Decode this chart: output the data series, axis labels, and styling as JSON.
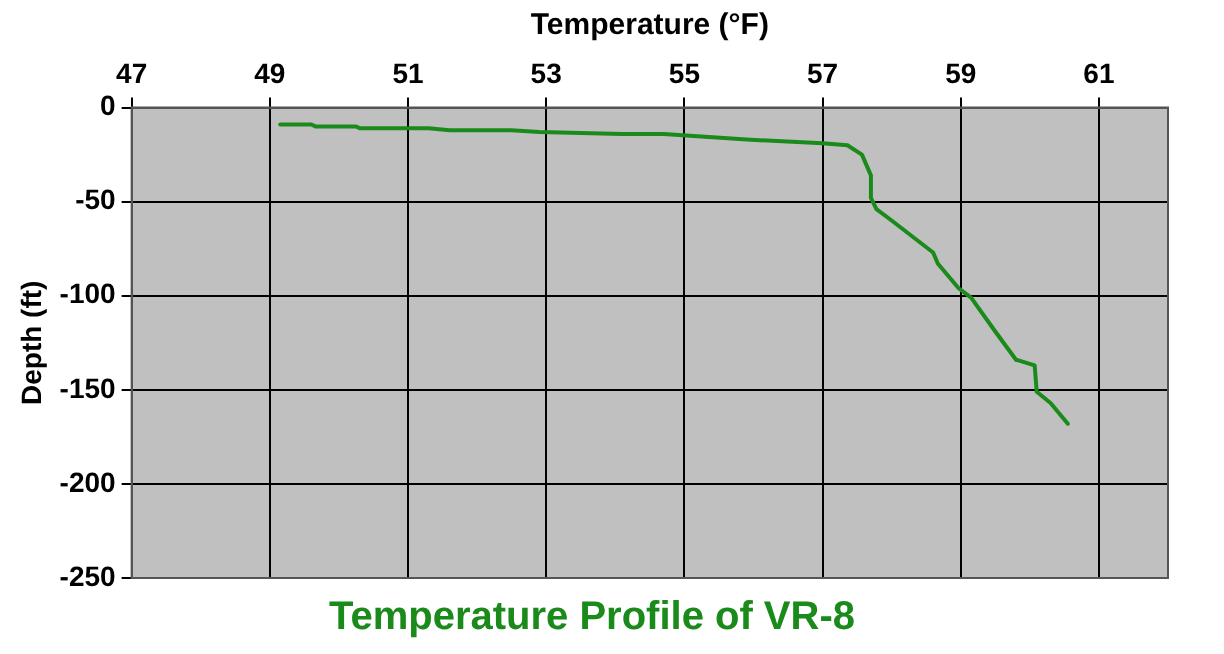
{
  "chart_data": {
    "type": "line",
    "title": "Temperature Profile of VR-8",
    "xlabel": "Temperature (°F)",
    "ylabel": "Depth (ft)",
    "xlim": [
      47,
      62
    ],
    "xticks": [
      47,
      49,
      51,
      53,
      55,
      57,
      59,
      61
    ],
    "ylim": [
      -250,
      0
    ],
    "yticks": [
      -250,
      -200,
      -150,
      -100,
      -50,
      0
    ],
    "grid": true,
    "legend": false,
    "marker": "none",
    "line_style": "solid",
    "series": [
      {
        "color": "#1a8a1a",
        "x": [
          49.15,
          49.6,
          49.66,
          50.25,
          50.3,
          51.3,
          51.6,
          52.5,
          52.9,
          54.1,
          54.7,
          55.9,
          57.0,
          57.36,
          57.57,
          57.7,
          57.7,
          57.78,
          58.0,
          58.6,
          58.67,
          58.97,
          59.15,
          59.5,
          59.8,
          60.07,
          60.1,
          60.3,
          60.55
        ],
        "values": [
          -9,
          -9,
          -10,
          -10,
          -11,
          -11,
          -12,
          -12,
          -13,
          -14,
          -14,
          -17,
          -19,
          -20,
          -25,
          -36,
          -48,
          -54,
          -60,
          -77,
          -83,
          -96,
          -101,
          -119,
          -134,
          -137,
          -151,
          -157,
          -168
        ]
      }
    ]
  }
}
